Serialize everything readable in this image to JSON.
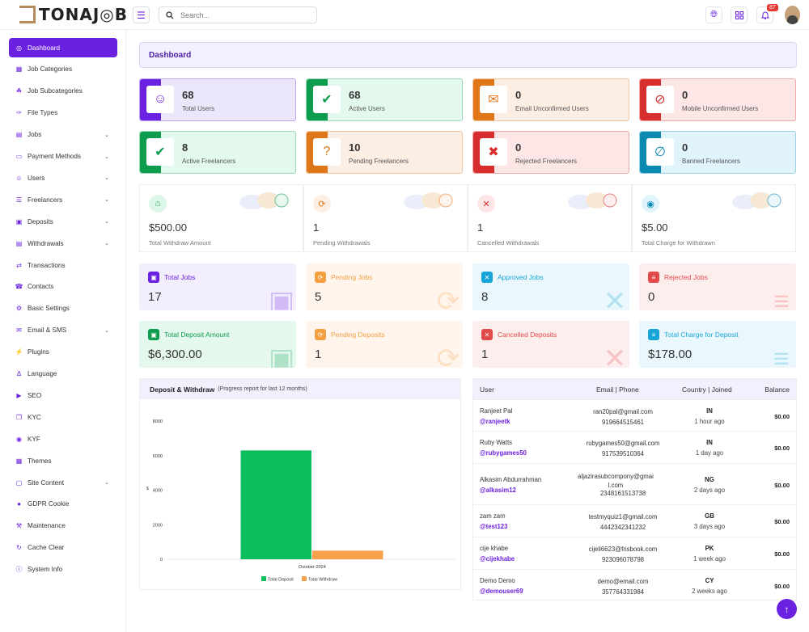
{
  "app": {
    "logo_text": "TONAJ◎B",
    "search_placeholder": "Search...",
    "notif_count": "87"
  },
  "sidebar": {
    "items": [
      {
        "label": "Dashboard",
        "icon": "dashboard-icon",
        "chev": false
      },
      {
        "label": "Job Categories",
        "icon": "grid-icon",
        "chev": false
      },
      {
        "label": "Job Subcategories",
        "icon": "tree-icon",
        "chev": false
      },
      {
        "label": "File Types",
        "icon": "tag-icon",
        "chev": false
      },
      {
        "label": "Jobs",
        "icon": "briefcase-icon",
        "chev": true
      },
      {
        "label": "Payment Methods",
        "icon": "card-icon",
        "chev": true
      },
      {
        "label": "Users",
        "icon": "users-icon",
        "chev": true
      },
      {
        "label": "Freelancers",
        "icon": "freelancer-icon",
        "chev": true
      },
      {
        "label": "Deposits",
        "icon": "deposit-icon",
        "chev": true
      },
      {
        "label": "Withdrawals",
        "icon": "withdraw-icon",
        "chev": true
      },
      {
        "label": "Transactions",
        "icon": "exchange-icon",
        "chev": false
      },
      {
        "label": "Contacts",
        "icon": "contact-icon",
        "chev": false
      },
      {
        "label": "Basic Settings",
        "icon": "settings-icon",
        "chev": false
      },
      {
        "label": "Email & SMS",
        "icon": "mail-icon",
        "chev": true
      },
      {
        "label": "Plugins",
        "icon": "plug-icon",
        "chev": false
      },
      {
        "label": "Language",
        "icon": "language-icon",
        "chev": false
      },
      {
        "label": "SEO",
        "icon": "seo-icon",
        "chev": false
      },
      {
        "label": "KYC",
        "icon": "kyc-icon",
        "chev": false
      },
      {
        "label": "KYF",
        "icon": "kyf-icon",
        "chev": false
      },
      {
        "label": "Themes",
        "icon": "themes-icon",
        "chev": false
      },
      {
        "label": "Site Content",
        "icon": "content-icon",
        "chev": true
      },
      {
        "label": "GDPR Cookie",
        "icon": "cookie-icon",
        "chev": false
      },
      {
        "label": "Maintenance",
        "icon": "maintenance-icon",
        "chev": false
      },
      {
        "label": "Cache Clear",
        "icon": "cache-icon",
        "chev": false
      },
      {
        "label": "System Info",
        "icon": "info-icon",
        "chev": false
      }
    ]
  },
  "page": {
    "title": "Dashboard"
  },
  "stats": [
    {
      "value": "68",
      "label": "Total Users",
      "color": "#6b21e0",
      "bg": "#ece6fb",
      "icon": "users-icon"
    },
    {
      "value": "68",
      "label": "Active Users",
      "color": "#0d9b4d",
      "bg": "#e3f9ee",
      "icon": "user-check-icon"
    },
    {
      "value": "0",
      "label": "Email Unconfirmed Users",
      "color": "#e0761a",
      "bg": "#fdeee4",
      "icon": "mail-off-icon"
    },
    {
      "value": "0",
      "label": "Mobile Unconfirmed Users",
      "color": "#d92e2e",
      "bg": "#fde6e6",
      "icon": "chat-off-icon"
    },
    {
      "value": "8",
      "label": "Active Freelancers",
      "color": "#0d9b4d",
      "bg": "#e3f9ee",
      "icon": "user-check-icon"
    },
    {
      "value": "10",
      "label": "Pending Freelancers",
      "color": "#e0761a",
      "bg": "#fdeee4",
      "icon": "user-question-icon"
    },
    {
      "value": "0",
      "label": "Rejected Freelancers",
      "color": "#d92e2e",
      "bg": "#fde6e6",
      "icon": "user-x-icon"
    },
    {
      "value": "0",
      "label": "Banned Freelancers",
      "color": "#0a8ab0",
      "bg": "#e2f4fb",
      "icon": "user-ban-icon"
    }
  ],
  "withdraw": [
    {
      "value": "$500.00",
      "label": "Total Withdraw Amount",
      "color": "#0d9b4d",
      "bg": "#dcf6e8",
      "icon": "bank-icon"
    },
    {
      "value": "1",
      "label": "Pending Withdrawals",
      "color": "#e0761a",
      "bg": "#fdeee4",
      "icon": "spinner-icon"
    },
    {
      "value": "1",
      "label": "Cancelled Withdrawals",
      "color": "#d92e2e",
      "bg": "#fde6e6",
      "icon": "x-icon"
    },
    {
      "value": "$5.00",
      "label": "Total Charge for Withdrawn",
      "color": "#0a8ab0",
      "bg": "#e2f4fb",
      "icon": "coins-icon"
    }
  ],
  "jobs": [
    {
      "label": "Total Jobs",
      "value": "17",
      "color": "#6b21e0",
      "bg": "#f3eefd",
      "glyph": "▣"
    },
    {
      "label": "Pending Jobs",
      "value": "5",
      "color": "#f5a040",
      "bg": "#fff5ed",
      "glyph": "⟳"
    },
    {
      "label": "Approved Jobs",
      "value": "8",
      "color": "#17a5d8",
      "bg": "#eaf7fd",
      "glyph": "✕"
    },
    {
      "label": "Rejected Jobs",
      "value": "0",
      "color": "#e24a4a",
      "bg": "#fdeeee",
      "glyph": "≡"
    }
  ],
  "deposits": [
    {
      "label": "Total Deposit Amount",
      "value": "$6,300.00",
      "color": "#0d9b4d",
      "bg": "#e5f8ee",
      "glyph": "▣"
    },
    {
      "label": "Pending Deposits",
      "value": "1",
      "color": "#f5a040",
      "bg": "#fff5ed",
      "glyph": "⟳"
    },
    {
      "label": "Cancelled Deposits",
      "value": "1",
      "color": "#e24a4a",
      "bg": "#fdeeee",
      "glyph": "✕"
    },
    {
      "label": "Total Charge for Deposit",
      "value": "$178.00",
      "color": "#17a5d8",
      "bg": "#eaf7fd",
      "glyph": "≡"
    }
  ],
  "chart_panel": {
    "title": "Deposit & Withdraw",
    "subtitle": "(Progress report for last 12 months)"
  },
  "chart_data": {
    "type": "bar",
    "categories": [
      "October-2024"
    ],
    "series": [
      {
        "name": "Total Deposit",
        "values": [
          6300
        ],
        "color": "#0dbf5c"
      },
      {
        "name": "Total Withdraw",
        "values": [
          500
        ],
        "color": "#f7a24b"
      }
    ],
    "yticks": [
      "0",
      "2000",
      "4000",
      "6000",
      "8000"
    ],
    "ylim": [
      0,
      8000
    ],
    "ylabel": "$",
    "legend": "bottom"
  },
  "users_table": {
    "headers": [
      "User",
      "Email | Phone",
      "Country | Joined",
      "Balance"
    ],
    "rows": [
      {
        "name": "Ranjeet Pal",
        "handle": "@ranjeetk",
        "email": "ran20pal@gmail.com",
        "phone": "919664515461",
        "country": "IN",
        "joined": "1 hour ago",
        "balance": "$0.00"
      },
      {
        "name": "Ruby Watts",
        "handle": "@rubygames50",
        "email": "rubygames50@gmail.com",
        "phone": "917539510364",
        "country": "IN",
        "joined": "1 day ago",
        "balance": "$0.00"
      },
      {
        "name": "Alkasim Abdurrahman",
        "handle": "@alkasim12",
        "email": "aljazirasubcompony@gmail.com",
        "phone": "2348161513738",
        "country": "NG",
        "joined": "2 days ago",
        "balance": "$0.00"
      },
      {
        "name": "zam zam",
        "handle": "@test123",
        "email": "testmyquiz1@gmail.com",
        "phone": "4442342341232",
        "country": "GB",
        "joined": "3 days ago",
        "balance": "$0.00"
      },
      {
        "name": "cije khabe",
        "handle": "@cijekhabe",
        "email": "cijeli6623@frisbook.com",
        "phone": "923096078798",
        "country": "PK",
        "joined": "1 week ago",
        "balance": "$0.00"
      },
      {
        "name": "Demo Demo",
        "handle": "@demouser69",
        "email": "demo@email.com",
        "phone": "357764331984",
        "country": "CY",
        "joined": "2 weeks ago",
        "balance": "$0.00"
      }
    ]
  }
}
